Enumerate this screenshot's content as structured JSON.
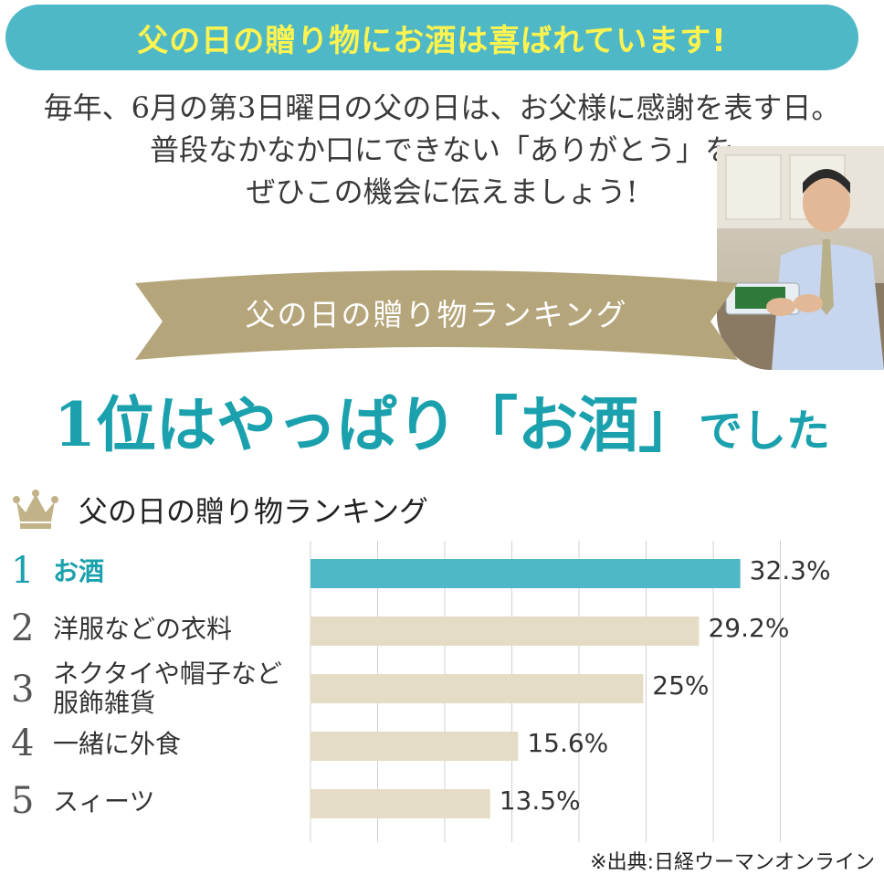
{
  "banner": {
    "text": "父の日の贈り物にお酒は喜ばれています!"
  },
  "intro": {
    "lines": [
      "毎年、6月の第3日曜日の父の日は、お父様に感謝を表す日。",
      "普段なかなか口にできない「ありがとう」を",
      "ぜひこの機会に伝えましょう!"
    ]
  },
  "ribbon": {
    "text": "父の日の贈り物ランキング"
  },
  "headline": {
    "part1": "1位はやっぱり",
    "part2": "「お酒」",
    "part3": "でした"
  },
  "colors": {
    "banner": "#4fb8c6",
    "banner_text": "#fff44f",
    "ribbon": "#b5a57a",
    "accent": "#1aa1ad",
    "top_bar": "#4fb8c6",
    "bar": "#e4dcc4",
    "grid": "#d0d0d0",
    "crown": "#c2b287"
  },
  "icons": {
    "crown": "crown-icon"
  },
  "chart_data": {
    "type": "bar",
    "orientation": "horizontal",
    "title": "父の日の贈り物ランキング",
    "categories": [
      "お酒",
      "洋服などの衣料",
      "ネクタイや帽子など服飾雑貨",
      "一緒に外食",
      "スィーツ"
    ],
    "category_lines": [
      [
        "お酒"
      ],
      [
        "洋服などの衣料"
      ],
      [
        "ネクタイや帽子など",
        "服飾雑貨"
      ],
      [
        "一緒に外食"
      ],
      [
        "スィーツ"
      ]
    ],
    "ranks": [
      "1",
      "2",
      "3",
      "4",
      "5"
    ],
    "values": [
      32.3,
      29.2,
      25,
      15.6,
      13.5
    ],
    "value_labels": [
      "32.3%",
      "29.2%",
      "25%",
      "15.6%",
      "13.5%"
    ],
    "xlim": [
      0,
      35
    ],
    "grid": true
  },
  "source": "※出典:日経ウーマンオンライン"
}
